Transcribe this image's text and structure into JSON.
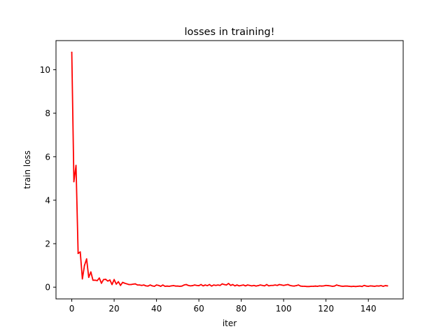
{
  "chart_data": {
    "type": "line",
    "title": "losses in training!",
    "xlabel": "iter",
    "ylabel": "train loss",
    "xlim": [
      -7.45,
      156.45
    ],
    "ylim": [
      -0.54,
      11.34
    ],
    "xticks": [
      0,
      20,
      40,
      60,
      80,
      100,
      120,
      140
    ],
    "yticks": [
      0,
      2,
      4,
      6,
      8,
      10
    ],
    "grid": false,
    "legend": "none",
    "series": [
      {
        "color": "#ff0000",
        "x": [
          0,
          1,
          2,
          3,
          4,
          5,
          6,
          7,
          8,
          9,
          10,
          11,
          12,
          13,
          14,
          15,
          16,
          17,
          18,
          19,
          20,
          21,
          22,
          23,
          24,
          25,
          26,
          27,
          28,
          29,
          30,
          31,
          32,
          33,
          34,
          35,
          36,
          37,
          38,
          39,
          40,
          41,
          42,
          43,
          44,
          45,
          46,
          47,
          48,
          49,
          50,
          51,
          52,
          53,
          54,
          55,
          56,
          57,
          58,
          59,
          60,
          61,
          62,
          63,
          64,
          65,
          66,
          67,
          68,
          69,
          70,
          71,
          72,
          73,
          74,
          75,
          76,
          77,
          78,
          79,
          80,
          81,
          82,
          83,
          84,
          85,
          86,
          87,
          88,
          89,
          90,
          91,
          92,
          93,
          94,
          95,
          96,
          97,
          98,
          99,
          100,
          101,
          102,
          103,
          104,
          105,
          106,
          107,
          108,
          109,
          110,
          111,
          112,
          113,
          114,
          115,
          116,
          117,
          118,
          119,
          120,
          121,
          122,
          123,
          124,
          125,
          126,
          127,
          128,
          129,
          130,
          131,
          132,
          133,
          134,
          135,
          136,
          137,
          138,
          139,
          140,
          141,
          142,
          143,
          144,
          145,
          146,
          147,
          148,
          149
        ],
        "values": [
          10.8,
          4.85,
          5.6,
          1.55,
          1.62,
          0.38,
          1.0,
          1.3,
          0.45,
          0.7,
          0.32,
          0.32,
          0.3,
          0.42,
          0.18,
          0.35,
          0.36,
          0.28,
          0.33,
          0.12,
          0.35,
          0.14,
          0.25,
          0.08,
          0.22,
          0.18,
          0.15,
          0.12,
          0.12,
          0.14,
          0.15,
          0.1,
          0.1,
          0.08,
          0.1,
          0.06,
          0.05,
          0.1,
          0.06,
          0.04,
          0.1,
          0.08,
          0.04,
          0.1,
          0.04,
          0.05,
          0.04,
          0.06,
          0.07,
          0.05,
          0.05,
          0.04,
          0.05,
          0.1,
          0.12,
          0.08,
          0.06,
          0.07,
          0.1,
          0.08,
          0.07,
          0.12,
          0.06,
          0.1,
          0.07,
          0.12,
          0.05,
          0.1,
          0.08,
          0.1,
          0.08,
          0.15,
          0.12,
          0.1,
          0.17,
          0.08,
          0.12,
          0.06,
          0.1,
          0.06,
          0.08,
          0.1,
          0.06,
          0.1,
          0.08,
          0.06,
          0.08,
          0.05,
          0.07,
          0.1,
          0.08,
          0.06,
          0.12,
          0.06,
          0.08,
          0.08,
          0.1,
          0.08,
          0.12,
          0.1,
          0.08,
          0.1,
          0.12,
          0.08,
          0.06,
          0.05,
          0.07,
          0.1,
          0.05,
          0.04,
          0.04,
          0.03,
          0.03,
          0.04,
          0.04,
          0.05,
          0.04,
          0.06,
          0.05,
          0.06,
          0.08,
          0.07,
          0.06,
          0.04,
          0.05,
          0.1,
          0.07,
          0.05,
          0.04,
          0.05,
          0.05,
          0.04,
          0.03,
          0.04,
          0.03,
          0.04,
          0.05,
          0.03,
          0.08,
          0.05,
          0.04,
          0.06,
          0.05,
          0.04,
          0.06,
          0.05,
          0.07,
          0.04,
          0.07,
          0.06
        ]
      }
    ]
  }
}
